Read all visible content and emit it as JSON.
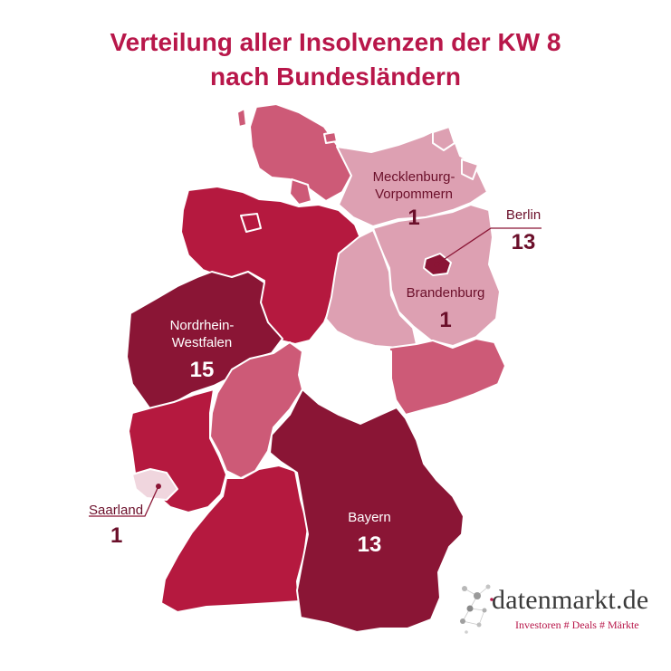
{
  "title_line1": "Verteilung aller Insolvenzen der KW 8",
  "title_line2": "nach Bundesländern",
  "colors": {
    "title": "#b8174a",
    "level_darkest": "#8a1535",
    "level_dark": "#b5193f",
    "level_medium": "#cd5a77",
    "level_light": "#dda0b2",
    "no_data": "#ffffff"
  },
  "labels": {
    "mv": {
      "name_line1": "Mecklenburg-",
      "name_line2": "Vorpommern",
      "count": "1"
    },
    "berlin": {
      "name": "Berlin",
      "count": "13"
    },
    "brandenburg": {
      "name": "Brandenburg",
      "count": "1"
    },
    "nrw": {
      "name_line1": "Nordrhein-",
      "name_line2": "Westfalen",
      "count": "15"
    },
    "saarland": {
      "name": "Saarland",
      "count": "1"
    },
    "bayern": {
      "name": "Bayern",
      "count": "13"
    }
  },
  "logo": {
    "name": "datenmarkt.de",
    "tagline": "Investoren # Deals # Märkte"
  }
}
